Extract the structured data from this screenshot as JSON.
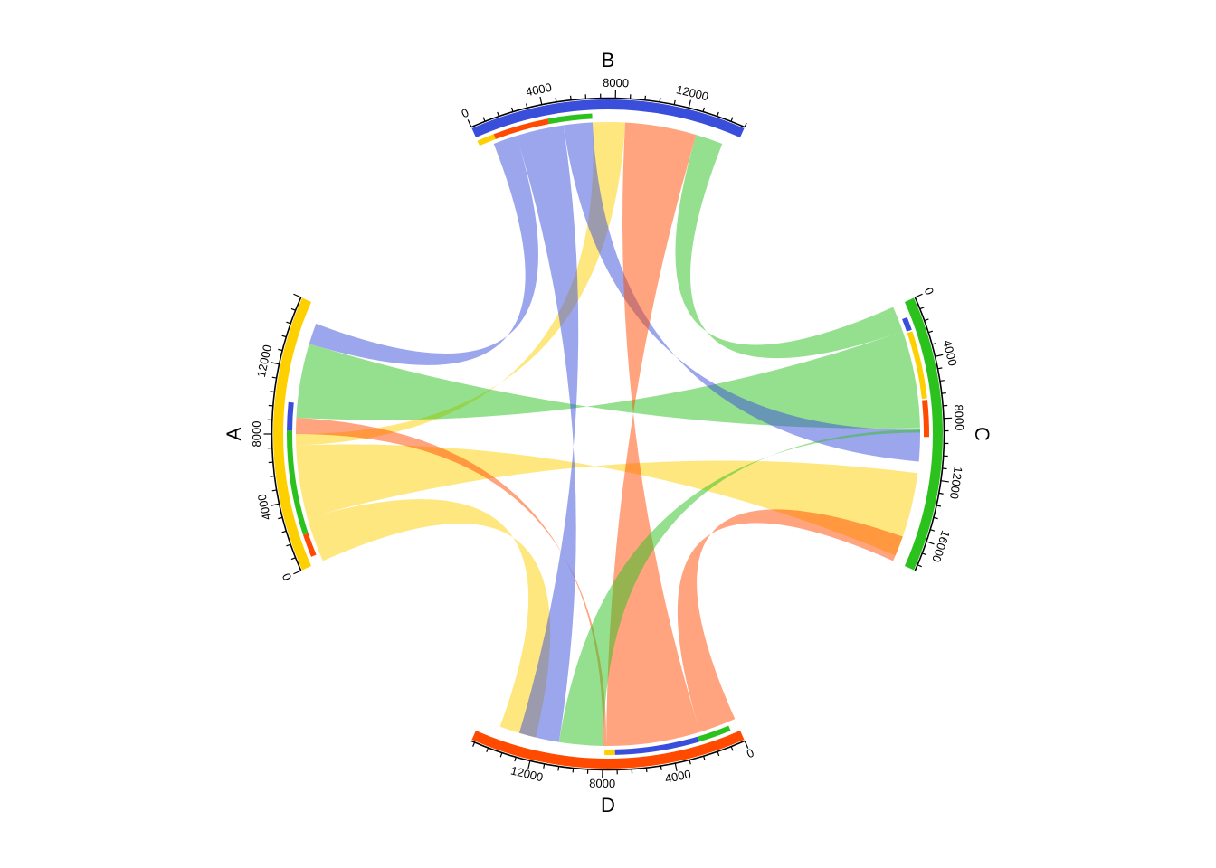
{
  "chart_data": {
    "type": "chord",
    "title": "",
    "sectors": [
      {
        "name": "A",
        "total": 16000,
        "color": "#FFD000",
        "tick_labels": [
          "0",
          "4000",
          "8000",
          "12000"
        ],
        "tick_values": [
          0,
          4000,
          8000,
          12000
        ]
      },
      {
        "name": "B",
        "total": 15200,
        "color": "#3A4EDC",
        "tick_labels": [
          "0",
          "4000",
          "8000",
          "12000"
        ],
        "tick_values": [
          0,
          4000,
          8000,
          12000
        ]
      },
      {
        "name": "C",
        "total": 18000,
        "color": "#2CC21E",
        "tick_labels": [
          "0",
          "4000",
          "8000",
          "12000",
          "16000"
        ],
        "tick_values": [
          0,
          4000,
          8000,
          12000,
          16000
        ]
      },
      {
        "name": "D",
        "total": 15400,
        "color": "#FF4A00",
        "tick_labels": [
          "0",
          "4000",
          "8000",
          "12000"
        ],
        "tick_values": [
          0,
          4000,
          8000,
          12000
        ]
      }
    ],
    "links": [
      {
        "from": "A",
        "from_range": [
          0,
          2800
        ],
        "to": "D",
        "to_range": [
          12000,
          14200
        ],
        "color": "#FFD000"
      },
      {
        "from": "A",
        "from_range": [
          2800,
          7300
        ],
        "to": "C",
        "to_range": [
          11700,
          17600
        ],
        "color": "#FFD000"
      },
      {
        "from": "A",
        "from_range": [
          7300,
          8000
        ],
        "to": "B",
        "to_range": [
          6700,
          8600
        ],
        "color": "#FFD000"
      },
      {
        "from": "A",
        "from_range": [
          8000,
          9000
        ],
        "to": "D",
        "to_range": [
          7800,
          8000
        ],
        "color": "#FF4A00"
      },
      {
        "from": "A",
        "from_range": [
          9000,
          13600
        ],
        "to": "C",
        "to_range": [
          1800,
          8600
        ],
        "color": "#2CC21E"
      },
      {
        "from": "A",
        "from_range": [
          13600,
          14900
        ],
        "to": "B",
        "to_range": [
          800,
          2200
        ],
        "color": "#3A4EDC"
      },
      {
        "from": "B",
        "from_range": [
          2200,
          5000
        ],
        "to": "D",
        "to_range": [
          10600,
          13000
        ],
        "color": "#3A4EDC"
      },
      {
        "from": "B",
        "from_range": [
          5000,
          6700
        ],
        "to": "C",
        "to_range": [
          8700,
          10900
        ],
        "color": "#3A4EDC"
      },
      {
        "from": "B",
        "from_range": [
          8600,
          12800
        ],
        "to": "D",
        "to_range": [
          2200,
          7800
        ],
        "color": "#FF4A00"
      },
      {
        "from": "B",
        "from_range": [
          12800,
          14400
        ],
        "to": "C",
        "to_range": [
          0,
          1800
        ],
        "color": "#2CC21E"
      },
      {
        "from": "C",
        "from_range": [
          8700,
          8900
        ],
        "to": "D",
        "to_range": [
          8000,
          10600
        ],
        "color": "#2CC21E"
      },
      {
        "from": "C",
        "from_range": [
          16200,
          18000
        ],
        "to": "D",
        "to_range": [
          0,
          2200
        ],
        "color": "#FF4A00"
      }
    ],
    "inner_tracks": [
      {
        "sector": "A",
        "segments": [
          {
            "range": [
              500,
              1900
            ],
            "color": "#FF4A00"
          },
          {
            "range": [
              1900,
              8200
            ],
            "color": "#2CC21E"
          },
          {
            "range": [
              8200,
              9900
            ],
            "color": "#3A4EDC"
          }
        ]
      },
      {
        "sector": "B",
        "segments": [
          {
            "range": [
              0,
              1000
            ],
            "color": "#FFD000"
          },
          {
            "range": [
              1000,
              4200
            ],
            "color": "#FF4A00"
          },
          {
            "range": [
              4200,
              6700
            ],
            "color": "#2CC21E"
          }
        ]
      },
      {
        "sector": "C",
        "segments": [
          {
            "range": [
              1000,
              1900
            ],
            "color": "#3A4EDC"
          },
          {
            "range": [
              2000,
              6600
            ],
            "color": "#FFD000"
          },
          {
            "range": [
              6700,
              9200
            ],
            "color": "#FF4A00"
          }
        ]
      },
      {
        "sector": "D",
        "segments": [
          {
            "range": [
              500,
              2400
            ],
            "color": "#2CC21E"
          },
          {
            "range": [
              2400,
              7300
            ],
            "color": "#3A4EDC"
          },
          {
            "range": [
              7300,
              7900
            ],
            "color": "#FFD000"
          }
        ]
      }
    ],
    "legend": "none",
    "grid": false
  }
}
